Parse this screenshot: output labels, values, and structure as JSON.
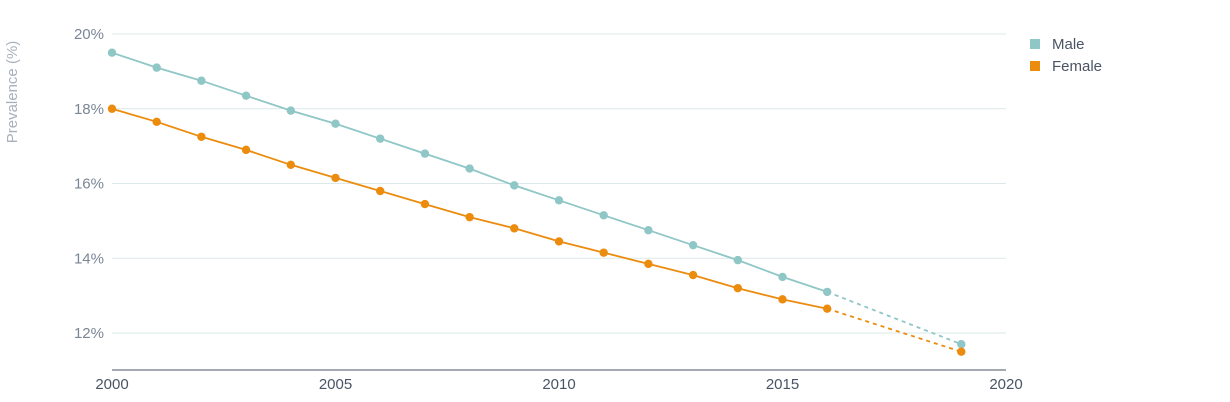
{
  "chart_data": {
    "type": "line",
    "ylabel": "Prevalence (%)",
    "xlabel": "",
    "xlim": [
      2000,
      2020
    ],
    "ylim": [
      11,
      20
    ],
    "x_ticks": [
      2000,
      2005,
      2010,
      2015,
      2020
    ],
    "y_ticks": [
      12,
      14,
      16,
      18,
      20
    ],
    "y_tick_suffix": "%",
    "grid": "horizontal",
    "legend_position": "top-right",
    "series": [
      {
        "name": "Male",
        "color": "#8fc6c6",
        "x": [
          2000,
          2001,
          2002,
          2003,
          2004,
          2005,
          2006,
          2007,
          2008,
          2009,
          2010,
          2011,
          2012,
          2013,
          2014,
          2015,
          2016
        ],
        "values": [
          19.5,
          19.1,
          18.75,
          18.35,
          17.95,
          17.6,
          17.2,
          16.8,
          16.4,
          15.95,
          15.55,
          15.15,
          14.75,
          14.35,
          13.95,
          13.5,
          13.1
        ],
        "projection": {
          "x": [
            2016,
            2019
          ],
          "values": [
            13.1,
            11.7
          ]
        }
      },
      {
        "name": "Female",
        "color": "#ec8c0e",
        "x": [
          2000,
          2001,
          2002,
          2003,
          2004,
          2005,
          2006,
          2007,
          2008,
          2009,
          2010,
          2011,
          2012,
          2013,
          2014,
          2015,
          2016
        ],
        "values": [
          18.0,
          17.65,
          17.25,
          16.9,
          16.5,
          16.15,
          15.8,
          15.45,
          15.1,
          14.8,
          14.45,
          14.15,
          13.85,
          13.55,
          13.2,
          12.9,
          12.65
        ],
        "projection": {
          "x": [
            2016,
            2019
          ],
          "values": [
            12.65,
            11.5
          ]
        }
      }
    ]
  }
}
